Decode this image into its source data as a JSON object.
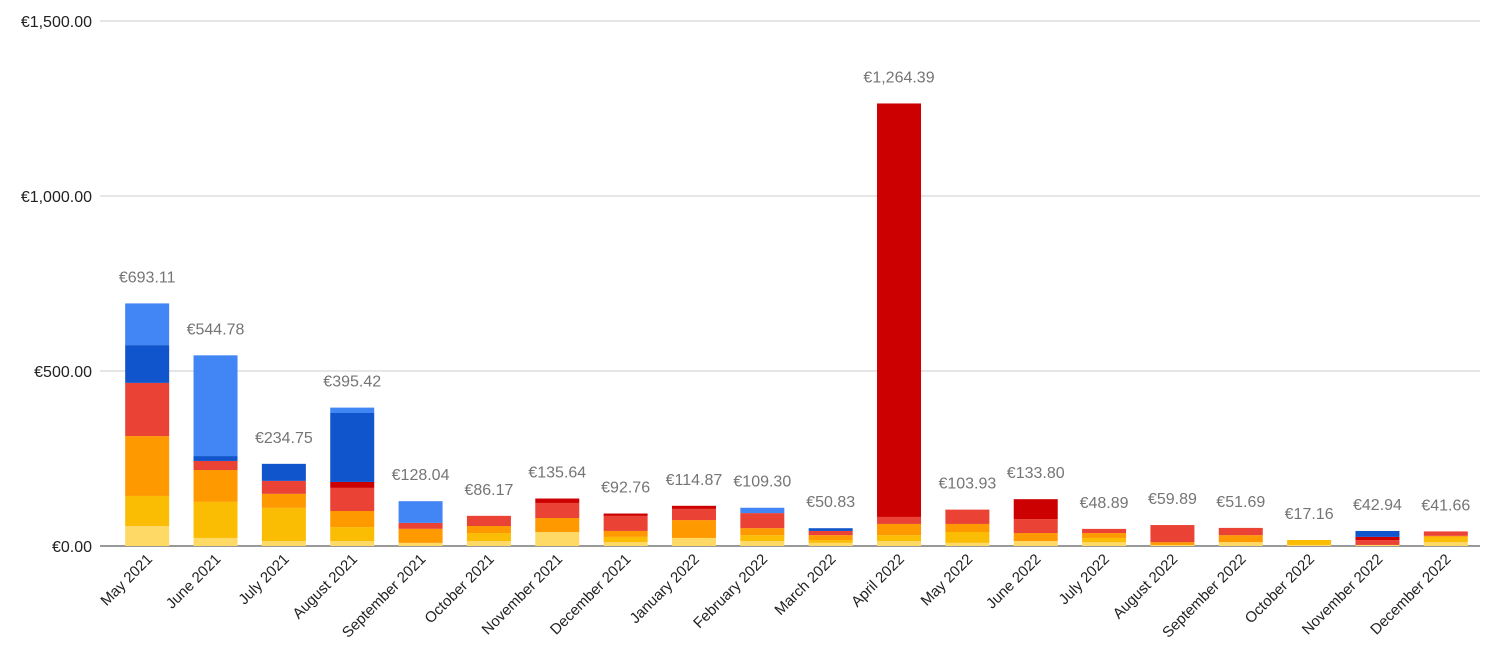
{
  "chart_data": {
    "type": "stacked_bar",
    "categories": [
      "May 2021",
      "June 2021",
      "July 2021",
      "August 2021",
      "September 2021",
      "October 2021",
      "November 2021",
      "December 2021",
      "January 2022",
      "February 2022",
      "March 2022",
      "April 2022",
      "May 2022",
      "June 2022",
      "July 2022",
      "August 2022",
      "September 2022",
      "October 2022",
      "November 2022",
      "December 2022"
    ],
    "series": [
      {
        "color": "#ffd966",
        "values": [
          57,
          23,
          14,
          14,
          9,
          14,
          40,
          11,
          23,
          14,
          9,
          14,
          9,
          14,
          11,
          3,
          11,
          3,
          3,
          11
        ]
      },
      {
        "color": "#fbbc04",
        "values": [
          86,
          103,
          95,
          40,
          0,
          23,
          0,
          15,
          0,
          17,
          8,
          17,
          31,
          0,
          12,
          0,
          0,
          14.16,
          0,
          15
        ]
      },
      {
        "color": "#ff9900",
        "values": [
          171,
          91,
          40,
          46,
          40,
          20,
          40,
          17,
          51,
          20,
          14,
          32,
          23,
          23,
          14,
          8,
          20,
          0,
          0,
          3
        ]
      },
      {
        "color": "#ea4335",
        "values": [
          152,
          26,
          37,
          66,
          17,
          29.17,
          43,
          43,
          32,
          43,
          12,
          20,
          40.93,
          40,
          11.89,
          48.89,
          20.69,
          0,
          14,
          12.66
        ]
      },
      {
        "color": "#cc0000",
        "values": [
          0,
          0,
          0,
          17,
          0,
          0,
          12.64,
          6.76,
          8.87,
          0,
          0,
          1181.39,
          0,
          56.8,
          0,
          0,
          0,
          0,
          9,
          0
        ]
      },
      {
        "color": "#1155cc",
        "values": [
          108,
          14,
          48.75,
          197,
          0,
          0,
          0,
          0,
          0,
          0,
          7.83,
          0,
          0,
          0,
          0,
          0,
          0,
          0,
          16.94,
          0
        ]
      },
      {
        "color": "#4285f4",
        "values": [
          119.11,
          287.78,
          0,
          15.42,
          62.04,
          0,
          0,
          0,
          0,
          15.3,
          0,
          0,
          0,
          0,
          0,
          0,
          0,
          0,
          0,
          0
        ]
      }
    ],
    "total_labels": [
      "€693.11",
      "€544.78",
      "€234.75",
      "€395.42",
      "€128.04",
      "€86.17",
      "€135.64",
      "€92.76",
      "€114.87",
      "€109.30",
      "€50.83",
      "€1,264.39",
      "€103.93",
      "€133.80",
      "€48.89",
      "€59.89",
      "€51.69",
      "€17.16",
      "€42.94",
      "€41.66"
    ],
    "ylim": [
      0,
      1500
    ],
    "yticks": [
      {
        "value": 0,
        "label": "€0.00"
      },
      {
        "value": 500,
        "label": "€500.00"
      },
      {
        "value": 1000,
        "label": "€1,000.00"
      },
      {
        "value": 1500,
        "label": "€1,500.00"
      }
    ],
    "grid": true
  }
}
